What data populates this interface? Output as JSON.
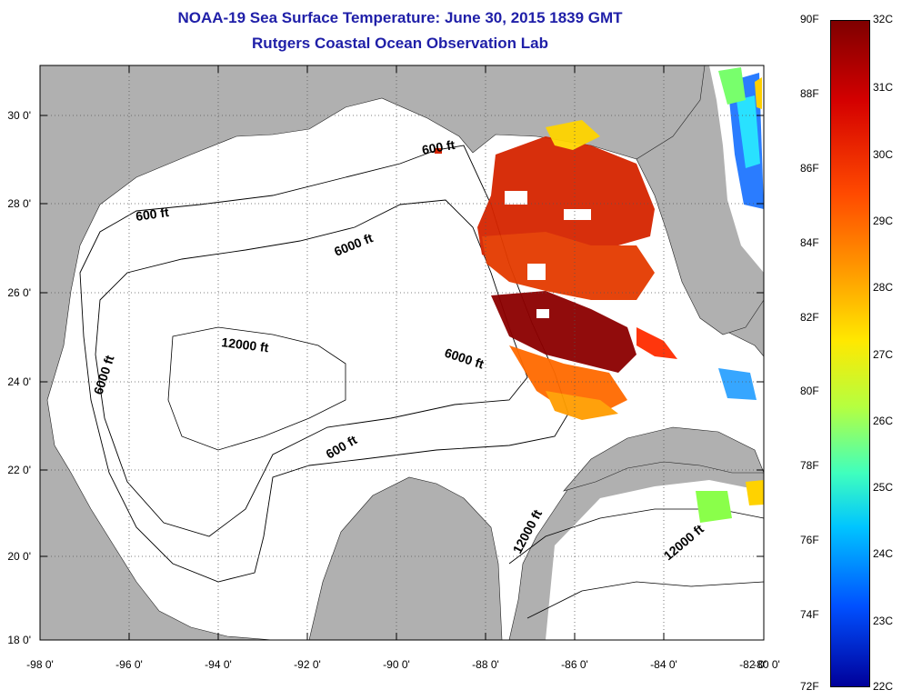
{
  "header": {
    "title": "NOAA-19 Sea Surface Temperature:  June 30, 2015 1839 GMT",
    "subtitle": "Rutgers Coastal Ocean Observation Lab"
  },
  "map": {
    "lat_labels": [
      "30 0'",
      "28 0'",
      "26 0'",
      "24 0'",
      "22 0'",
      "20 0'",
      "18 0'"
    ],
    "lon_labels": [
      "-98 0'",
      "-96 0'",
      "-94 0'",
      "-92 0'",
      "-90 0'",
      "-88 0'",
      "-86 0'",
      "-84 0'",
      "-82 0'",
      "-80 0'"
    ],
    "contour_labels": [
      "600 ft",
      "600 ft",
      "6000 ft",
      "6000 ft",
      "6000 ft",
      "12000 ft",
      "600 ft",
      "12000 ft",
      "12000 ft"
    ],
    "land_color": "#b0b0b0",
    "water_color": "#ffffff"
  },
  "colorbar": {
    "fahrenheit_labels": [
      "90F",
      "88F",
      "86F",
      "84F",
      "82F",
      "80F",
      "78F",
      "76F",
      "74F",
      "72F"
    ],
    "celsius_labels": [
      "32C",
      "31C",
      "30C",
      "29C",
      "28C",
      "27C",
      "26C",
      "25C",
      "24C",
      "23C",
      "22C"
    ],
    "colors": [
      "#7f0000",
      "#d40000",
      "#ff4a00",
      "#ff9d00",
      "#ffe800",
      "#b5ff40",
      "#3fffbe",
      "#00c5ff",
      "#0050ff",
      "#00009a"
    ]
  }
}
